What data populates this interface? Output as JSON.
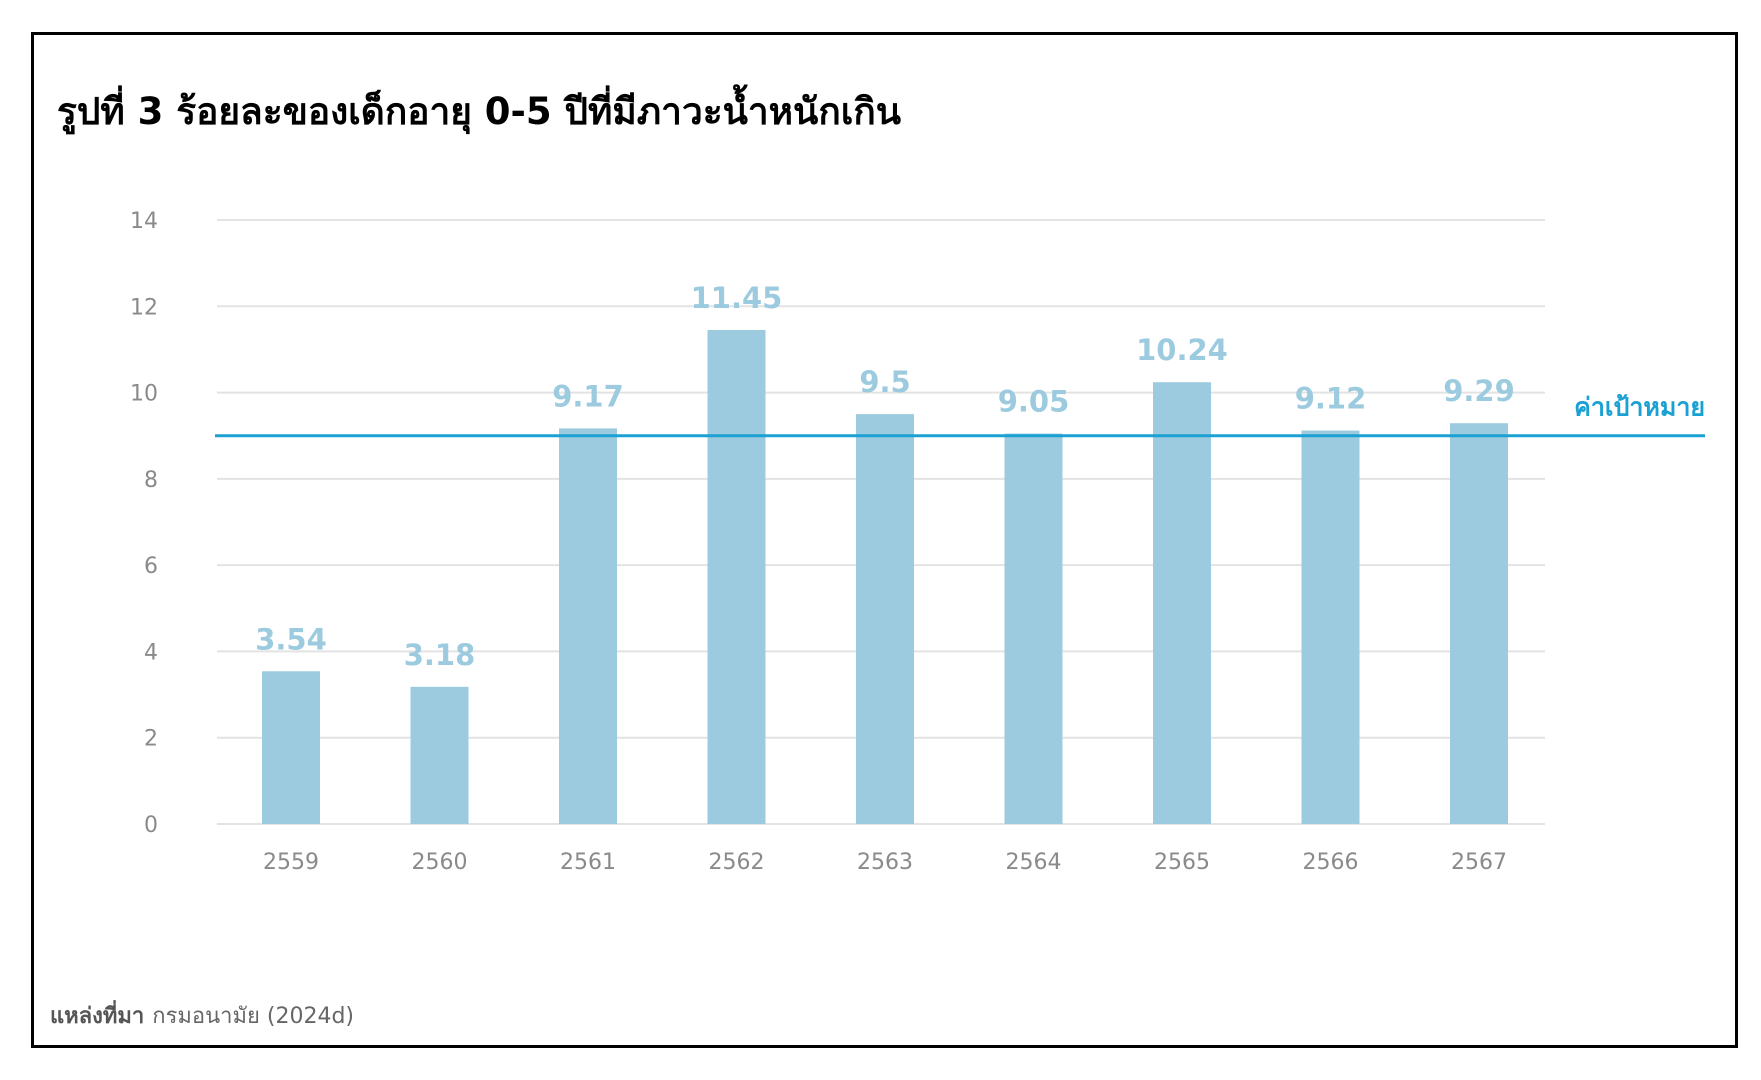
{
  "title": "รูปที่ 3  ร้อยละของเด็กอายุ 0-5 ปีที่มีภาวะน้ำหนักเกิน",
  "source": {
    "label": "แหล่งที่มา",
    "text": "กรมอนามัย (2024d)"
  },
  "chart_data": {
    "type": "bar",
    "categories": [
      "2559",
      "2560",
      "2561",
      "2562",
      "2563",
      "2564",
      "2565",
      "2566",
      "2567"
    ],
    "values": [
      3.54,
      3.18,
      9.17,
      11.45,
      9.5,
      9.05,
      10.24,
      9.12,
      9.29
    ],
    "data_labels": [
      "3.54",
      "3.18",
      "9.17",
      "11.45",
      "9.5",
      "9.05",
      "10.24",
      "9.12",
      "9.29"
    ],
    "ylim": [
      0,
      14
    ],
    "yticks": [
      0,
      2,
      4,
      6,
      8,
      10,
      12,
      14
    ],
    "grid": true,
    "target": {
      "value": 9,
      "label": "ค่าเป้าหมาย"
    },
    "colors": {
      "bar": "#9ccbdf",
      "target": "#1aa0d3",
      "grid": "#e3e3e3"
    }
  }
}
